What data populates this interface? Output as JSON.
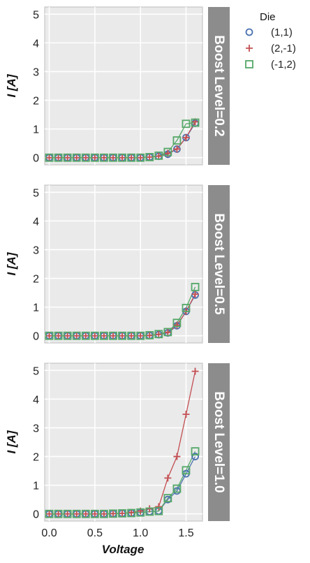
{
  "chart_data": {
    "type": "line",
    "xlabel": "Voltage",
    "ylabel": "I [A]",
    "xlim": [
      -0.05,
      1.68
    ],
    "ylim": [
      -0.25,
      5.25
    ],
    "xticks": [
      "0.0",
      "0.5",
      "1.0",
      "1.5"
    ],
    "yticks": [
      "0",
      "1",
      "2",
      "3",
      "4",
      "5"
    ],
    "grid": true,
    "legend": {
      "title": "Die",
      "placement": "outside-right-top"
    },
    "x": [
      0.0,
      0.1,
      0.2,
      0.3,
      0.4,
      0.5,
      0.6,
      0.7,
      0.8,
      0.9,
      1.0,
      1.1,
      1.2,
      1.3,
      1.4,
      1.5,
      1.6
    ],
    "series_styles": [
      {
        "name": "(1,1)",
        "marker": "circle",
        "color": "#4c72b0"
      },
      {
        "name": "(2,-1)",
        "marker": "plus",
        "color": "#c44e52"
      },
      {
        "name": "(-1,2)",
        "marker": "square",
        "color": "#55a868"
      }
    ],
    "panels": [
      {
        "title": "Boost Level=0.2",
        "series": [
          {
            "name": "(1,1)",
            "values": [
              0,
              0,
              0,
              0,
              0,
              0,
              0,
              0,
              0,
              0,
              0,
              0.02,
              0.05,
              0.12,
              0.3,
              0.7,
              1.2
            ]
          },
          {
            "name": "(2,-1)",
            "values": [
              0,
              0,
              0,
              0,
              0,
              0,
              0,
              0,
              0,
              0,
              0,
              0.02,
              0.05,
              0.15,
              0.3,
              0.7,
              1.25
            ]
          },
          {
            "name": "(-1,2)",
            "values": [
              0,
              0,
              0,
              0,
              0,
              0,
              0,
              0,
              0,
              0,
              0,
              0.02,
              0.07,
              0.2,
              0.6,
              1.18,
              1.22
            ]
          }
        ]
      },
      {
        "title": "Boost Level=0.5",
        "series": [
          {
            "name": "(1,1)",
            "values": [
              0,
              0,
              0,
              0,
              0,
              0,
              0,
              0,
              0,
              0,
              0,
              0.01,
              0.04,
              0.1,
              0.35,
              0.85,
              1.42
            ]
          },
          {
            "name": "(2,-1)",
            "values": [
              0,
              0,
              0,
              0,
              0,
              0,
              0,
              0,
              0,
              0,
              0,
              0.01,
              0.05,
              0.12,
              0.37,
              0.85,
              1.45
            ]
          },
          {
            "name": "(-1,2)",
            "values": [
              0,
              0,
              0,
              0,
              0,
              0,
              0,
              0,
              0,
              0,
              0,
              0.02,
              0.06,
              0.13,
              0.45,
              0.97,
              1.7
            ]
          }
        ]
      },
      {
        "title": "Boost Level=1.0",
        "series": [
          {
            "name": "(1,1)",
            "values": [
              0,
              0,
              0,
              0,
              0,
              0,
              0,
              0.01,
              0.02,
              0.03,
              0.05,
              0.08,
              0.1,
              0.5,
              0.8,
              1.4,
              2.0
            ]
          },
          {
            "name": "(2,-1)",
            "values": [
              0,
              0,
              0,
              0,
              0,
              0,
              0,
              0.01,
              0.02,
              0.05,
              0.1,
              0.18,
              0.25,
              1.25,
              2.0,
              3.47,
              4.97
            ]
          },
          {
            "name": "(-1,2)",
            "values": [
              0,
              0,
              0,
              0,
              0,
              0,
              0,
              0.01,
              0.02,
              0.03,
              0.05,
              0.08,
              0.1,
              0.55,
              0.88,
              1.52,
              2.18
            ]
          }
        ]
      }
    ]
  }
}
